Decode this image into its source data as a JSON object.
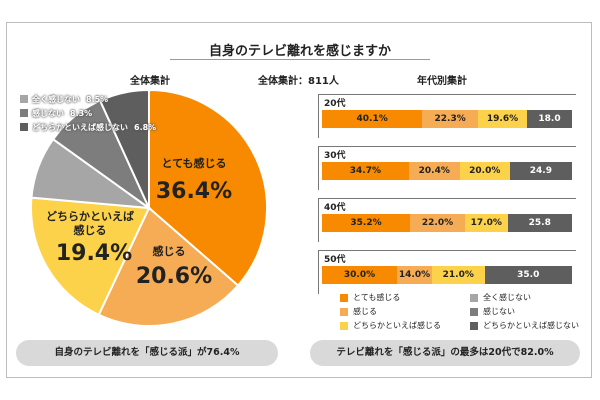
{
  "title": "自身のテレビ離れを感じますか",
  "left_heading": "全体集計",
  "center_heading": "全体集計：811人",
  "right_heading": "年代別集計",
  "colors": {
    "totemo": "#f78a00",
    "kanjiru": "#f6ab55",
    "dochiraka_kanjiru": "#fdd24b",
    "dochiraka_kanjinai": "#5e5e5e",
    "kanjinai": "#7d7d7d",
    "mattaku": "#a6a6a6"
  },
  "pie_labels": {
    "totemo_name": "とても感じる",
    "totemo_value": "36.4%",
    "kanjiru_name": "感じる",
    "kanjiru_value": "20.6%",
    "dochiraka_name1": "どちらかといえば",
    "dochiraka_name2": "感じる",
    "dochiraka_value": "19.4%"
  },
  "left_legend": [
    {
      "label": "全く感じない",
      "value": "8.5%"
    },
    {
      "label": "感じない",
      "value": "8.3%"
    },
    {
      "label": "どちらかといえば感じない",
      "value": "6.8%"
    }
  ],
  "callouts": {
    "left": "自身のテレビ離れを「感じる派」が76.4%",
    "right": "テレビ離れを「感じる派」の最多は20代で82.0%"
  },
  "right_legend": [
    "とても感じる",
    "全く感じない",
    "感じる",
    "感じない",
    "どちらかといえば感じる",
    "どちらかといえば感じない"
  ],
  "chart_data": [
    {
      "type": "pie",
      "title": "全体集計",
      "categories": [
        "とても感じる",
        "感じる",
        "どちらかといえば感じる",
        "全く感じない",
        "感じない",
        "どちらかといえば感じない"
      ],
      "values": [
        36.4,
        20.6,
        19.4,
        8.5,
        8.3,
        6.8
      ]
    },
    {
      "type": "bar",
      "title": "年代別集計",
      "categories": [
        "20代",
        "30代",
        "40代",
        "50代"
      ],
      "series": [
        {
          "name": "とても感じる",
          "values": [
            40.1,
            34.7,
            35.2,
            30.0
          ],
          "labels": [
            "40.1%",
            "34.7%",
            "35.2%",
            "30.0%"
          ]
        },
        {
          "name": "感じる",
          "values": [
            22.3,
            20.4,
            22.0,
            14.0
          ],
          "labels": [
            "22.3%",
            "20.4%",
            "22.0%",
            "14.0%"
          ]
        },
        {
          "name": "どちらかといえば感じる",
          "values": [
            19.6,
            20.0,
            17.0,
            21.0
          ],
          "labels": [
            "19.6%",
            "20.0%",
            "17.0%",
            "21.0%"
          ]
        },
        {
          "name": "全く感じない",
          "values": [
            0.0,
            0.0,
            0.0,
            0.0
          ],
          "labels": [
            "",
            "",
            "",
            ""
          ]
        },
        {
          "name": "感じない",
          "values": [
            0.0,
            0.0,
            0.0,
            0.0
          ],
          "labels": [
            "",
            "",
            "",
            ""
          ]
        },
        {
          "name": "どちらかといえば感じない",
          "values": [
            18.0,
            24.9,
            25.8,
            35.0
          ],
          "labels": [
            "18.0",
            "24.9",
            "25.8",
            "35.0"
          ]
        }
      ]
    }
  ]
}
